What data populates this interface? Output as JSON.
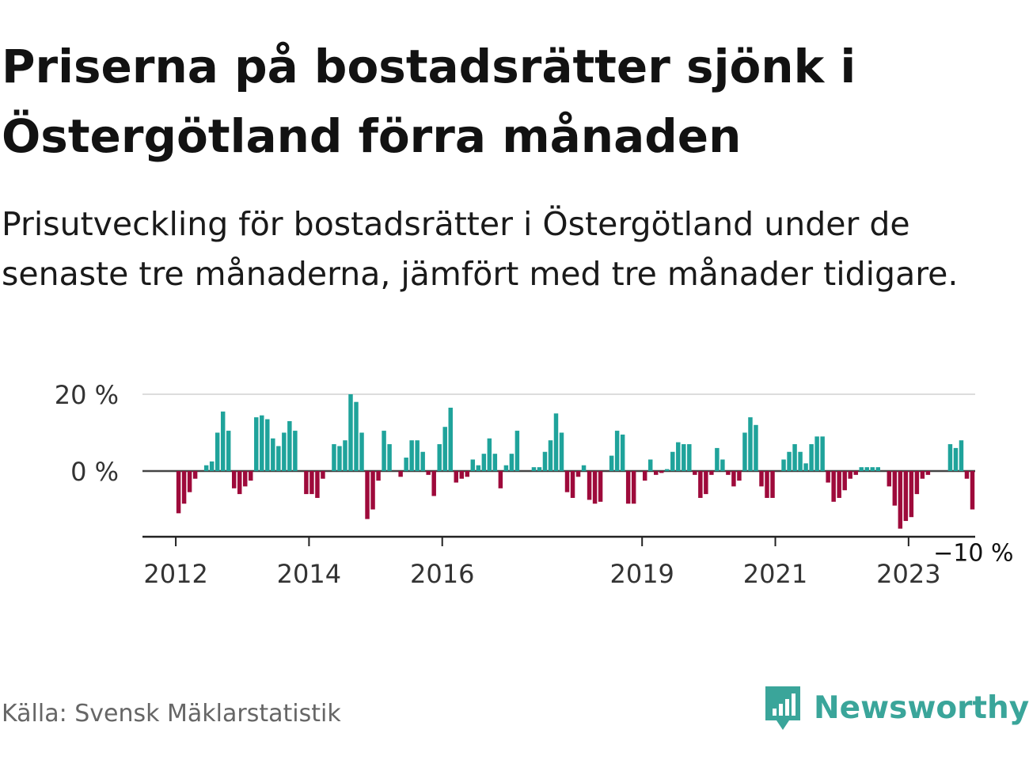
{
  "title": "Priserna på bostadsrätter sjönk i Östergötland förra månaden",
  "subtitle": "Prisutveckling för bostadsrätter i Östergötland under de senaste tre månaderna, jämfört med tre månader tidigare.",
  "source": "Källa: Svensk Mäklarstatistik",
  "brand": "Newsworthy",
  "colors": {
    "positive": "#1fa39b",
    "negative": "#9e0a3b",
    "brand": "#3aa59a"
  },
  "chart_data": {
    "type": "bar",
    "x_start": "2011-07",
    "x_end": "2024-01",
    "x_ticks": [
      {
        "date": "2012-01",
        "label": "2012"
      },
      {
        "date": "2014-01",
        "label": "2014"
      },
      {
        "date": "2016-01",
        "label": "2016"
      },
      {
        "date": "2019-01",
        "label": "2019"
      },
      {
        "date": "2021-01",
        "label": "2021"
      },
      {
        "date": "2023-01",
        "label": "2023"
      }
    ],
    "y_ticks": [
      {
        "value": 0,
        "label": "0 %"
      },
      {
        "value": 20,
        "label": "20 %"
      }
    ],
    "ylim": [
      -18,
      21
    ],
    "grid": true,
    "last_value_label": "−10 %",
    "unit": "%",
    "series": [
      {
        "values": [
          {
            "date": "2012-01",
            "value": -11.0
          },
          {
            "date": "2012-02",
            "value": -8.5
          },
          {
            "date": "2012-03",
            "value": -5.5
          },
          {
            "date": "2012-04",
            "value": -2.0
          },
          {
            "date": "2012-05",
            "value": 0
          },
          {
            "date": "2012-06",
            "value": 1.5
          },
          {
            "date": "2012-07",
            "value": 2.5
          },
          {
            "date": "2012-08",
            "value": 10.0
          },
          {
            "date": "2012-09",
            "value": 15.5
          },
          {
            "date": "2012-10",
            "value": 10.5
          },
          {
            "date": "2012-11",
            "value": -4.5
          },
          {
            "date": "2012-12",
            "value": -6.0
          },
          {
            "date": "2013-01",
            "value": -4.0
          },
          {
            "date": "2013-02",
            "value": -2.5
          },
          {
            "date": "2013-03",
            "value": 14.0
          },
          {
            "date": "2013-04",
            "value": 14.5
          },
          {
            "date": "2013-05",
            "value": 13.5
          },
          {
            "date": "2013-06",
            "value": 8.5
          },
          {
            "date": "2013-07",
            "value": 6.5
          },
          {
            "date": "2013-08",
            "value": 10.0
          },
          {
            "date": "2013-09",
            "value": 13.0
          },
          {
            "date": "2013-10",
            "value": 10.5
          },
          {
            "date": "2013-11",
            "value": 0
          },
          {
            "date": "2013-12",
            "value": -6.0
          },
          {
            "date": "2014-01",
            "value": -6.0
          },
          {
            "date": "2014-02",
            "value": -7.0
          },
          {
            "date": "2014-03",
            "value": -2.0
          },
          {
            "date": "2014-04",
            "value": 0
          },
          {
            "date": "2014-05",
            "value": 7.0
          },
          {
            "date": "2014-06",
            "value": 6.5
          },
          {
            "date": "2014-07",
            "value": 8.0
          },
          {
            "date": "2014-08",
            "value": 20.0
          },
          {
            "date": "2014-09",
            "value": 18.0
          },
          {
            "date": "2014-10",
            "value": 10.0
          },
          {
            "date": "2014-11",
            "value": -12.5
          },
          {
            "date": "2014-12",
            "value": -10.0
          },
          {
            "date": "2015-01",
            "value": -2.5
          },
          {
            "date": "2015-02",
            "value": 10.5
          },
          {
            "date": "2015-03",
            "value": 7.0
          },
          {
            "date": "2015-04",
            "value": 0
          },
          {
            "date": "2015-05",
            "value": -1.5
          },
          {
            "date": "2015-06",
            "value": 3.5
          },
          {
            "date": "2015-07",
            "value": 8.0
          },
          {
            "date": "2015-08",
            "value": 8.0
          },
          {
            "date": "2015-09",
            "value": 5.0
          },
          {
            "date": "2015-10",
            "value": -1.0
          },
          {
            "date": "2015-11",
            "value": -6.5
          },
          {
            "date": "2015-12",
            "value": 7.0
          },
          {
            "date": "2016-01",
            "value": 11.5
          },
          {
            "date": "2016-02",
            "value": 16.5
          },
          {
            "date": "2016-03",
            "value": -3.0
          },
          {
            "date": "2016-04",
            "value": -2.0
          },
          {
            "date": "2016-05",
            "value": -1.5
          },
          {
            "date": "2016-06",
            "value": 3.0
          },
          {
            "date": "2016-07",
            "value": 1.5
          },
          {
            "date": "2016-08",
            "value": 4.5
          },
          {
            "date": "2016-09",
            "value": 8.5
          },
          {
            "date": "2016-10",
            "value": 4.5
          },
          {
            "date": "2016-11",
            "value": -4.5
          },
          {
            "date": "2016-12",
            "value": 1.5
          },
          {
            "date": "2017-01",
            "value": 4.5
          },
          {
            "date": "2017-02",
            "value": 10.5
          },
          {
            "date": "2017-03",
            "value": 0
          },
          {
            "date": "2017-04",
            "value": 0
          },
          {
            "date": "2017-05",
            "value": 1.0
          },
          {
            "date": "2017-06",
            "value": 1.0
          },
          {
            "date": "2017-07",
            "value": 5.0
          },
          {
            "date": "2017-08",
            "value": 8.0
          },
          {
            "date": "2017-09",
            "value": 15.0
          },
          {
            "date": "2017-10",
            "value": 10.0
          },
          {
            "date": "2017-11",
            "value": -5.5
          },
          {
            "date": "2017-12",
            "value": -7.0
          },
          {
            "date": "2018-01",
            "value": -1.5
          },
          {
            "date": "2018-02",
            "value": 1.5
          },
          {
            "date": "2018-03",
            "value": -7.5
          },
          {
            "date": "2018-04",
            "value": -8.5
          },
          {
            "date": "2018-05",
            "value": -8.0
          },
          {
            "date": "2018-06",
            "value": 0
          },
          {
            "date": "2018-07",
            "value": 4.0
          },
          {
            "date": "2018-08",
            "value": 10.5
          },
          {
            "date": "2018-09",
            "value": 9.5
          },
          {
            "date": "2018-10",
            "value": -8.5
          },
          {
            "date": "2018-11",
            "value": -8.5
          },
          {
            "date": "2019-01",
            "value": -2.5
          },
          {
            "date": "2019-02",
            "value": 3.0
          },
          {
            "date": "2019-03",
            "value": -1.0
          },
          {
            "date": "2019-04",
            "value": -0.5
          },
          {
            "date": "2019-05",
            "value": 0.5
          },
          {
            "date": "2019-06",
            "value": 5.0
          },
          {
            "date": "2019-07",
            "value": 7.5
          },
          {
            "date": "2019-08",
            "value": 7.0
          },
          {
            "date": "2019-09",
            "value": 7.0
          },
          {
            "date": "2019-10",
            "value": -1.0
          },
          {
            "date": "2019-11",
            "value": -7.0
          },
          {
            "date": "2019-12",
            "value": -6.0
          },
          {
            "date": "2020-01",
            "value": -1.0
          },
          {
            "date": "2020-02",
            "value": 6.0
          },
          {
            "date": "2020-03",
            "value": 3.0
          },
          {
            "date": "2020-04",
            "value": -1.0
          },
          {
            "date": "2020-05",
            "value": -4.0
          },
          {
            "date": "2020-06",
            "value": -2.5
          },
          {
            "date": "2020-07",
            "value": 10.0
          },
          {
            "date": "2020-08",
            "value": 14.0
          },
          {
            "date": "2020-09",
            "value": 12.0
          },
          {
            "date": "2020-10",
            "value": -4.0
          },
          {
            "date": "2020-11",
            "value": -7.0
          },
          {
            "date": "2020-12",
            "value": -7.0
          },
          {
            "date": "2021-01",
            "value": 0
          },
          {
            "date": "2021-02",
            "value": 3.0
          },
          {
            "date": "2021-03",
            "value": 5.0
          },
          {
            "date": "2021-04",
            "value": 7.0
          },
          {
            "date": "2021-05",
            "value": 5.0
          },
          {
            "date": "2021-06",
            "value": 2.0
          },
          {
            "date": "2021-07",
            "value": 7.0
          },
          {
            "date": "2021-08",
            "value": 9.0
          },
          {
            "date": "2021-09",
            "value": 9.0
          },
          {
            "date": "2021-10",
            "value": -3.0
          },
          {
            "date": "2021-11",
            "value": -8.0
          },
          {
            "date": "2021-12",
            "value": -7.0
          },
          {
            "date": "2022-01",
            "value": -5.0
          },
          {
            "date": "2022-02",
            "value": -2.0
          },
          {
            "date": "2022-03",
            "value": -1.0
          },
          {
            "date": "2022-04",
            "value": 1.0
          },
          {
            "date": "2022-05",
            "value": 1.0
          },
          {
            "date": "2022-06",
            "value": 1.0
          },
          {
            "date": "2022-07",
            "value": 1.0
          },
          {
            "date": "2022-08",
            "value": 0
          },
          {
            "date": "2022-09",
            "value": -4.0
          },
          {
            "date": "2022-10",
            "value": -9.0
          },
          {
            "date": "2022-11",
            "value": -15.0
          },
          {
            "date": "2022-12",
            "value": -13.0
          },
          {
            "date": "2023-01",
            "value": -12.0
          },
          {
            "date": "2023-02",
            "value": -6.0
          },
          {
            "date": "2023-03",
            "value": -2.0
          },
          {
            "date": "2023-04",
            "value": -1.0
          },
          {
            "date": "2023-05",
            "value": 0
          },
          {
            "date": "2023-06",
            "value": 0
          },
          {
            "date": "2023-07",
            "value": 0
          },
          {
            "date": "2023-08",
            "value": 7.0
          },
          {
            "date": "2023-09",
            "value": 6.0
          },
          {
            "date": "2023-10",
            "value": 8.0
          },
          {
            "date": "2023-11",
            "value": -2.0
          },
          {
            "date": "2023-12",
            "value": -10.0
          }
        ]
      }
    ]
  }
}
